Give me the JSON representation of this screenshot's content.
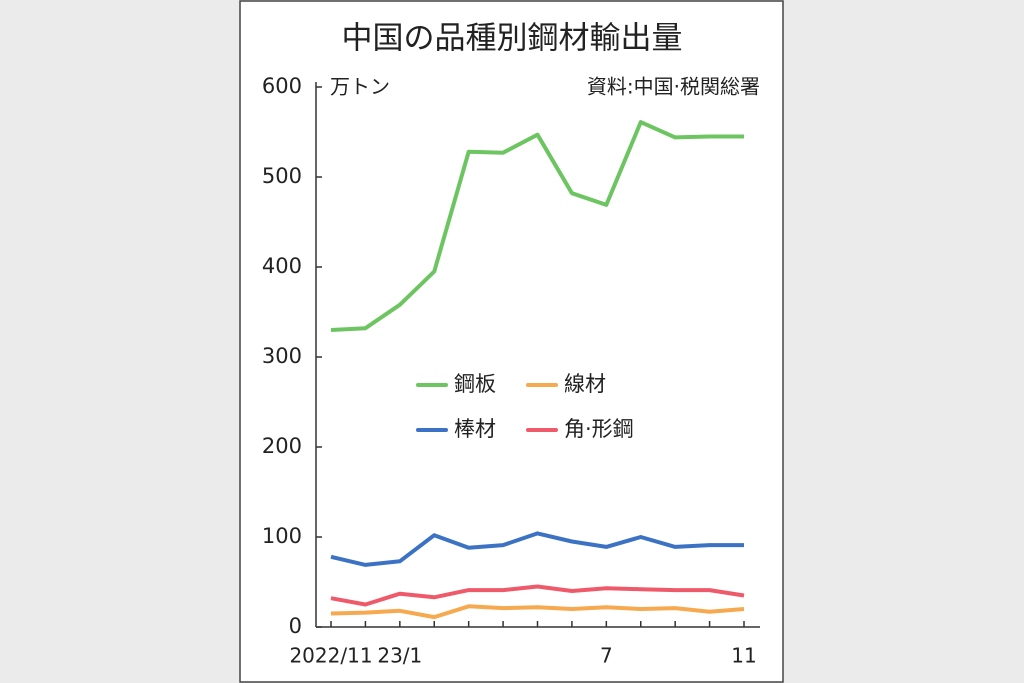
{
  "chart_data": {
    "type": "line",
    "title": "中国の品種別鋼材輸出量",
    "y_unit": "万トン",
    "source": "資料:中国·税関総署",
    "categories": [
      "2022/11",
      null,
      "23/1",
      null,
      null,
      null,
      null,
      null,
      "7",
      null,
      null,
      null,
      "11"
    ],
    "ylim": [
      0,
      600
    ],
    "yticks": [
      0,
      100,
      200,
      300,
      400,
      500,
      600
    ],
    "series": [
      {
        "name": "鋼板",
        "color": "#6cc561",
        "values": [
          330,
          332,
          358,
          395,
          528,
          527,
          547,
          482,
          469,
          561,
          544,
          545,
          545
        ]
      },
      {
        "name": "線材",
        "color": "#f6a94e",
        "values": [
          15,
          16,
          18,
          11,
          23,
          21,
          22,
          20,
          22,
          20,
          21,
          17,
          20
        ]
      },
      {
        "name": "棒材",
        "color": "#3b72c4",
        "values": [
          78,
          69,
          73,
          102,
          88,
          91,
          104,
          95,
          89,
          100,
          89,
          91,
          91
        ]
      },
      {
        "name": "角·形鋼",
        "color": "#ef5a6a",
        "values": [
          32,
          25,
          37,
          33,
          41,
          41,
          45,
          40,
          43,
          42,
          41,
          41,
          35
        ]
      }
    ]
  }
}
